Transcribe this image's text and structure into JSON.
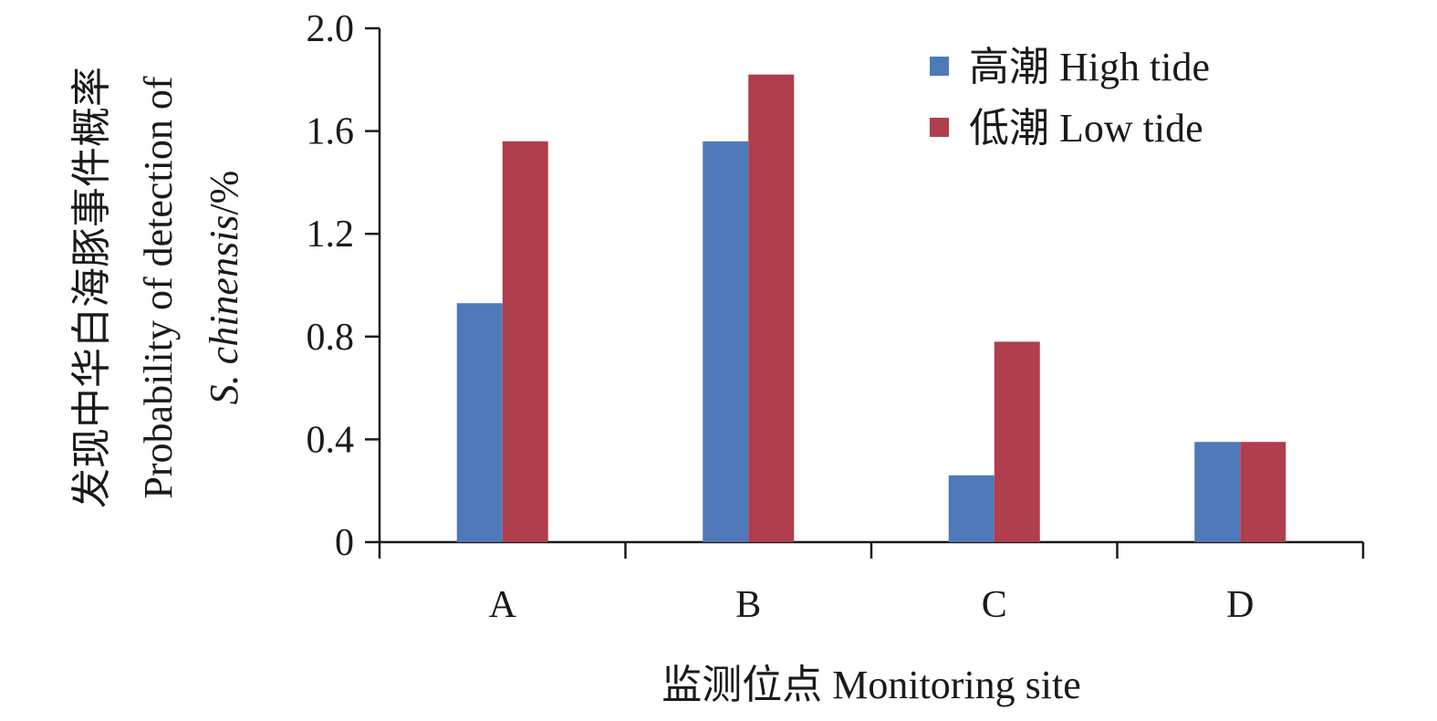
{
  "chart_data": {
    "type": "bar",
    "categories": [
      "A",
      "B",
      "C",
      "D"
    ],
    "series": [
      {
        "name": "高潮 High tide",
        "values": [
          0.93,
          1.56,
          0.26,
          0.39
        ],
        "color": "#4f79b9"
      },
      {
        "name": "低潮 Low tide",
        "values": [
          1.56,
          1.82,
          0.78,
          0.39
        ],
        "color": "#b03e4c"
      }
    ],
    "xlabel": "监测位点 Monitoring site",
    "ylabel": {
      "line1": "发现中华白海豚事件概率",
      "line2": "Probability of detection of",
      "line3_italic": "S. chinensis",
      "line3_suffix": "/%"
    },
    "ylim": [
      0,
      2.0
    ],
    "yticks": [
      "0",
      "0.4",
      "0.8",
      "1.2",
      "1.6",
      "2.0"
    ],
    "grid": false,
    "legend_position": "top-right"
  }
}
